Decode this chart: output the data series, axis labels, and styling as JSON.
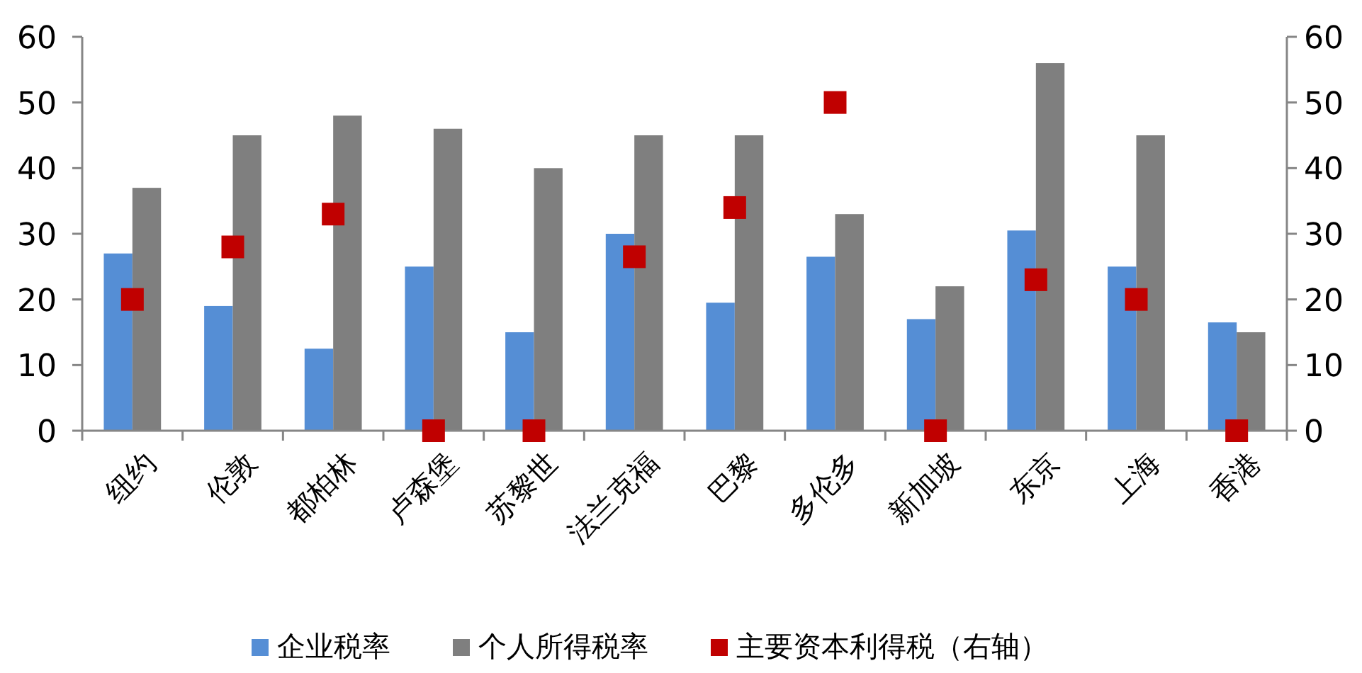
{
  "chart_data": {
    "type": "bar",
    "categories": [
      "纽约",
      "伦敦",
      "都柏林",
      "卢森堡",
      "苏黎世",
      "法兰克福",
      "巴黎",
      "多伦多",
      "新加坡",
      "东京",
      "上海",
      "香港"
    ],
    "series": [
      {
        "name": "企业税率",
        "color": "#558ed5",
        "values": [
          27,
          19,
          12.5,
          25,
          15,
          30,
          19.5,
          26.5,
          17,
          30.5,
          25,
          16.5
        ]
      },
      {
        "name": "个人所得税率",
        "color": "#7f7f7f",
        "values": [
          37,
          45,
          48,
          46,
          40,
          45,
          45,
          33,
          22,
          56,
          45,
          15
        ]
      },
      {
        "name": "主要资本利得税（右轴）",
        "color": "#c00000",
        "type": "scatter",
        "axis": "y2",
        "marker": "square",
        "values": [
          20,
          28,
          33,
          0,
          0,
          26.5,
          34,
          50,
          0,
          23,
          20,
          0
        ]
      }
    ],
    "ylim": [
      0,
      60
    ],
    "yticks": [
      0,
      10,
      20,
      30,
      40,
      50,
      60
    ],
    "y2lim": [
      0,
      60
    ],
    "y2ticks": [
      0,
      10,
      20,
      30,
      40,
      50,
      60
    ],
    "grid": false,
    "legend": "bottom"
  }
}
